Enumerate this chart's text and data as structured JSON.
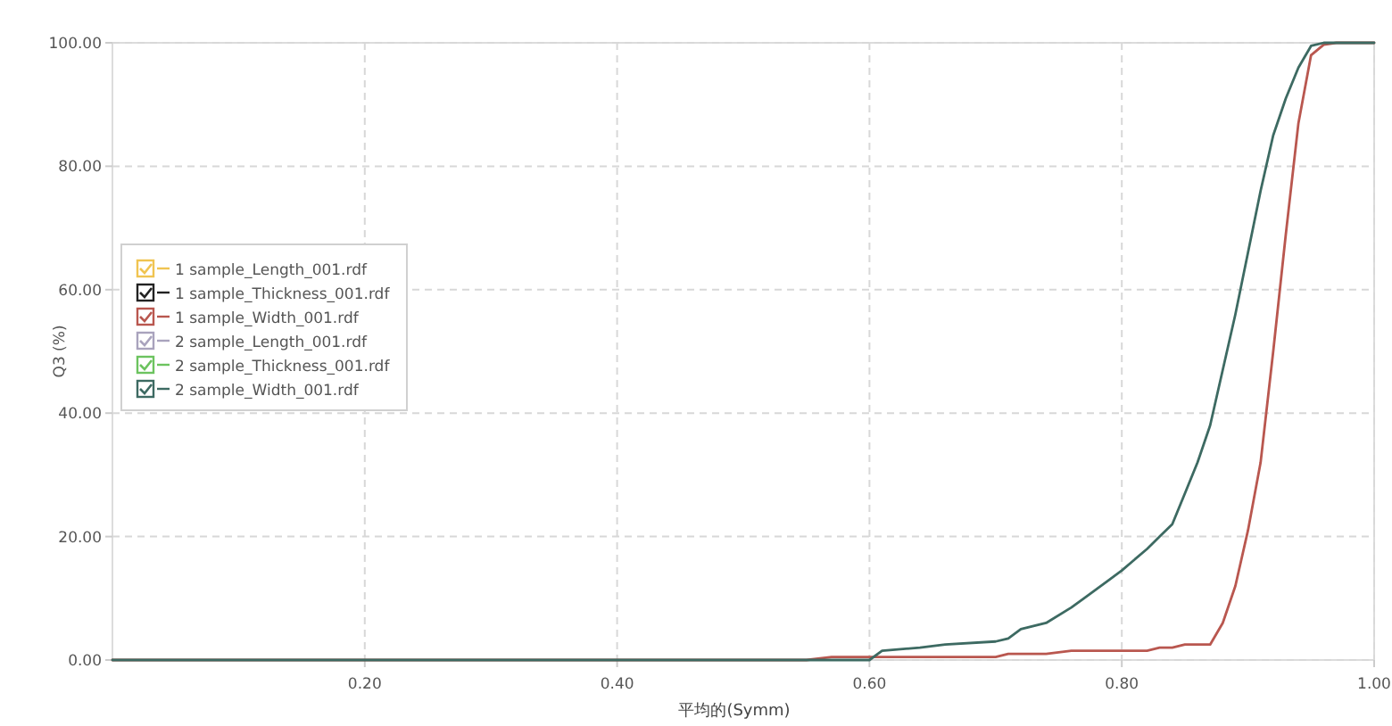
{
  "chart_data": {
    "type": "line",
    "xlabel": "平均的(Symm)",
    "ylabel": "Q3 (%)",
    "x": [
      0,
      0.55,
      0.57,
      0.6,
      0.61,
      0.64,
      0.66,
      0.7,
      0.71,
      0.72,
      0.73,
      0.74,
      0.76,
      0.77,
      0.79,
      0.8,
      0.82,
      0.83,
      0.84,
      0.85,
      0.86,
      0.87,
      0.88,
      0.89,
      0.9,
      0.91,
      0.92,
      0.93,
      0.94,
      0.95,
      0.96,
      0.97,
      1.0
    ],
    "series": [
      {
        "name": "1 sample_Length_001.rdf",
        "color": "#f0c451",
        "values": [
          null,
          null,
          null,
          null,
          null,
          null,
          null,
          null,
          null,
          null,
          null,
          null,
          null,
          null,
          null,
          null,
          null,
          null,
          null,
          null,
          null,
          null,
          null,
          null,
          null,
          null,
          null,
          null,
          null,
          null,
          null,
          null,
          null
        ]
      },
      {
        "name": "1 sample_Thickness_001.rdf",
        "color": "#222222",
        "values": [
          null,
          null,
          null,
          null,
          null,
          null,
          null,
          null,
          null,
          null,
          null,
          null,
          null,
          null,
          null,
          null,
          null,
          null,
          null,
          null,
          null,
          null,
          null,
          null,
          null,
          null,
          null,
          null,
          null,
          null,
          null,
          null,
          null
        ]
      },
      {
        "name": "1 sample_Width_001.rdf",
        "color": "#b9574f",
        "values": [
          0,
          0,
          0.5,
          0.5,
          0.5,
          0.5,
          0.5,
          0.5,
          1,
          1,
          1,
          1,
          1.5,
          1.5,
          1.5,
          1.5,
          1.5,
          2,
          2,
          2.5,
          2.5,
          2.5,
          6,
          12,
          21,
          32,
          50,
          69,
          87,
          98,
          99.7,
          100,
          100
        ]
      },
      {
        "name": "2 sample_Length_001.rdf",
        "color": "#a9a3bd",
        "values": [
          null,
          null,
          null,
          null,
          null,
          null,
          null,
          null,
          null,
          null,
          null,
          null,
          null,
          null,
          null,
          null,
          null,
          null,
          null,
          null,
          null,
          null,
          null,
          null,
          null,
          null,
          null,
          null,
          null,
          null,
          null,
          null,
          null
        ]
      },
      {
        "name": "2 sample_Thickness_001.rdf",
        "color": "#6cc35f",
        "values": [
          null,
          null,
          null,
          null,
          null,
          null,
          null,
          null,
          null,
          null,
          null,
          null,
          null,
          null,
          null,
          null,
          null,
          null,
          null,
          null,
          null,
          null,
          null,
          null,
          null,
          null,
          null,
          null,
          null,
          null,
          null,
          null,
          null
        ]
      },
      {
        "name": "2 sample_Width_001.rdf",
        "color": "#3d6a62",
        "values": [
          0,
          0,
          0,
          0,
          1.5,
          2,
          2.5,
          3,
          3.5,
          5,
          5.5,
          6,
          8.5,
          10,
          13,
          14.5,
          18,
          20,
          22,
          27,
          32,
          38,
          47,
          56,
          66,
          76,
          85,
          91,
          96,
          99.5,
          100,
          100,
          100
        ]
      }
    ],
    "xlim": [
      0,
      1.0
    ],
    "ylim": [
      0,
      100
    ],
    "xticks": [
      {
        "value": 0.2,
        "label": "0.20"
      },
      {
        "value": 0.4,
        "label": "0.40"
      },
      {
        "value": 0.6,
        "label": "0.60"
      },
      {
        "value": 0.8,
        "label": "0.80"
      },
      {
        "value": 1.0,
        "label": "1.00"
      }
    ],
    "yticks": [
      {
        "value": 0,
        "label": "0.00"
      },
      {
        "value": 20,
        "label": "20.00"
      },
      {
        "value": 40,
        "label": "40.00"
      },
      {
        "value": 60,
        "label": "60.00"
      },
      {
        "value": 80,
        "label": "80.00"
      },
      {
        "value": 100,
        "label": "100.00"
      }
    ],
    "grid": true,
    "legend": "left",
    "marker": "none",
    "line_style": "solid"
  }
}
